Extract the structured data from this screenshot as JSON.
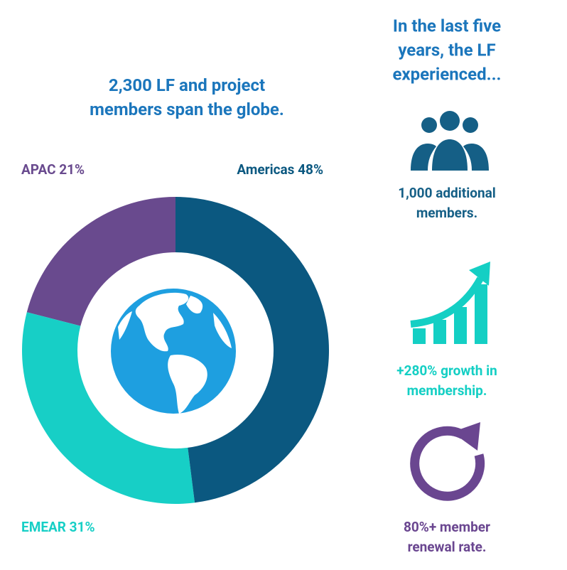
{
  "chart_data": {
    "type": "donut",
    "title": "2,300 LF and project members span the globe.",
    "categories": [
      "Americas",
      "EMEAR",
      "APAC"
    ],
    "values": [
      48,
      31,
      21
    ],
    "value_labels": [
      "48%",
      "31%",
      "21%"
    ],
    "colors": [
      "#0b5880",
      "#17cfc6",
      "#694a8e"
    ]
  },
  "side_panel": {
    "heading": [
      "In the last five",
      "years, the LF",
      "experienced..."
    ],
    "stats": [
      {
        "lines": [
          "1,000 additional",
          "members."
        ]
      },
      {
        "lines": [
          "+280% growth in",
          "membership."
        ]
      },
      {
        "lines": [
          "80%+ member",
          "renewal rate."
        ]
      }
    ]
  }
}
